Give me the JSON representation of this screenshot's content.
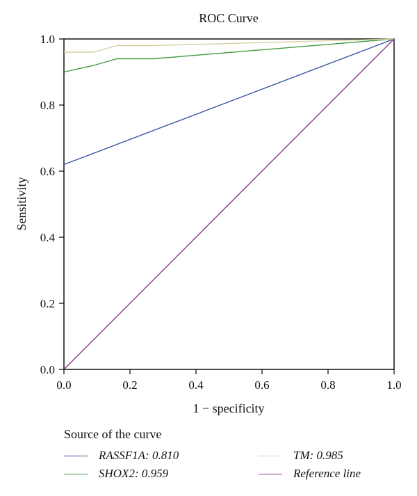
{
  "chart_data": {
    "type": "line",
    "title": "ROC Curve",
    "xlabel": "1 − specificity",
    "ylabel": "Sensitivity",
    "xlim": [
      0,
      1
    ],
    "ylim": [
      0,
      1
    ],
    "xticks": [
      "0.0",
      "0.2",
      "0.4",
      "0.6",
      "0.8",
      "1.0"
    ],
    "yticks": [
      "0.0",
      "0.2",
      "0.4",
      "0.6",
      "0.8",
      "1.0"
    ],
    "grid": false,
    "legend_title": "Source of the curve",
    "legend_position": "bottom",
    "series": [
      {
        "name": "RASSF1A: 0.810",
        "color": "#3a54a4",
        "points": [
          [
            0,
            0.62
          ],
          [
            1,
            1
          ]
        ]
      },
      {
        "name": "SHOX2: 0.959",
        "color": "#3e9a3e",
        "points": [
          [
            0,
            0.9
          ],
          [
            0.09,
            0.92
          ],
          [
            0.16,
            0.94
          ],
          [
            0.27,
            0.94
          ],
          [
            1,
            1
          ]
        ]
      },
      {
        "name": "TM: 0.985",
        "color": "#d8cfa4",
        "points": [
          [
            0,
            0.96
          ],
          [
            0.09,
            0.96
          ],
          [
            0.16,
            0.98
          ],
          [
            0.27,
            0.98
          ],
          [
            1,
            1
          ]
        ]
      },
      {
        "name": "Reference line",
        "color": "#8e3a8e",
        "points": [
          [
            0,
            0
          ],
          [
            1,
            1
          ]
        ]
      }
    ]
  }
}
